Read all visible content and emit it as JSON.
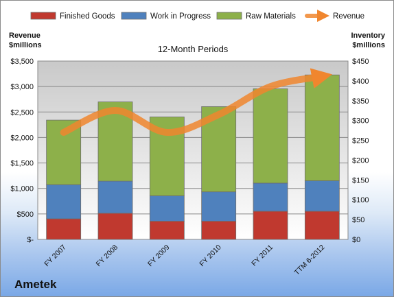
{
  "chart_data": {
    "type": "bar",
    "stacked": true,
    "title": "12-Month Periods",
    "ylabel_left": [
      "Revenue",
      "$millions"
    ],
    "ylabel_right": [
      "Inventory",
      "$millions"
    ],
    "categories": [
      "FY 2007",
      "FY 2008",
      "FY 2009",
      "FY 2010",
      "FY 2011",
      "TTM 6-2012"
    ],
    "series": [
      {
        "name": "Finished Goods",
        "color": "#c0392f",
        "values": [
          52,
          66,
          46,
          46,
          71,
          71
        ]
      },
      {
        "name": "Work in Progress",
        "color": "#4f81bd",
        "values": [
          86,
          81,
          64,
          74,
          71,
          77
        ]
      },
      {
        "name": "Raw Materials",
        "color": "#8db04a",
        "values": [
          163,
          200,
          199,
          215,
          238,
          267
        ]
      }
    ],
    "line": {
      "name": "Revenue",
      "color": "#f0862e",
      "values": [
        2100,
        2530,
        2100,
        2450,
        3000,
        3200
      ]
    },
    "left_axis": {
      "min": 0,
      "max": 3500,
      "step": 500,
      "tick_labels": [
        "$-",
        "$500",
        "$1,000",
        "$1,500",
        "$2,000",
        "$2,500",
        "$3,000",
        "$3,500"
      ]
    },
    "right_axis": {
      "min": 0,
      "max": 450,
      "step": 50,
      "tick_labels": [
        "$0",
        "$50",
        "$100",
        "$150",
        "$200",
        "$250",
        "$300",
        "$350",
        "$400",
        "$450"
      ]
    },
    "legend_position": "top",
    "grid": true
  },
  "company": "Ametek"
}
